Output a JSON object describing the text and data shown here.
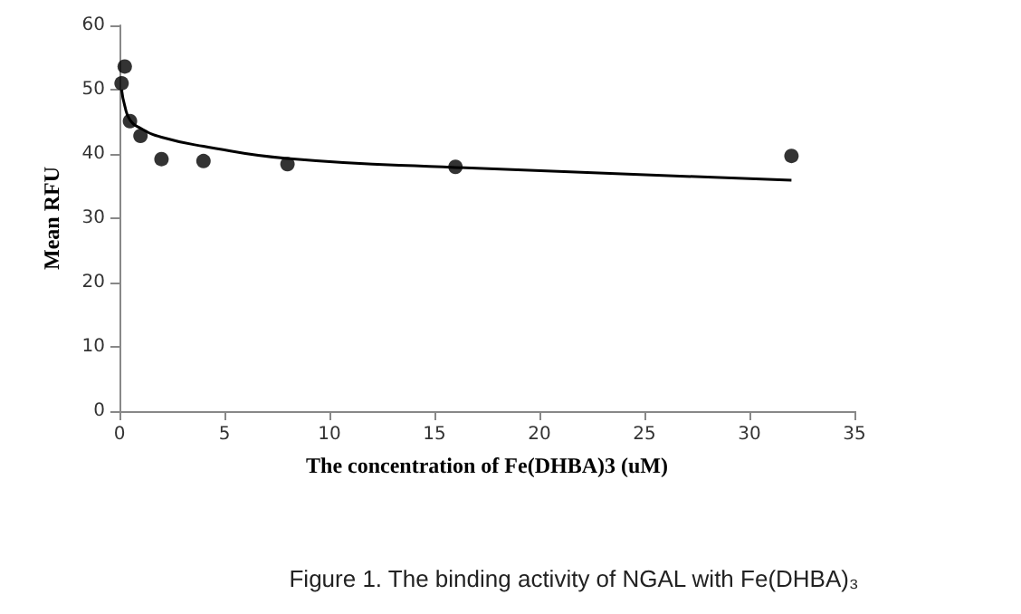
{
  "chart_data": {
    "type": "scatter",
    "title": "Figure 1. The binding activity of NGAL with Fe(DHBA)₃",
    "xlabel": "The concentration of Fe(DHBA)3 (uM)",
    "ylabel": "Mean RFU",
    "xlim": [
      0,
      35
    ],
    "xticks": [
      0,
      5,
      10,
      15,
      20,
      25,
      30,
      35
    ],
    "ylim": [
      0,
      60
    ],
    "yticks": [
      0,
      10,
      20,
      30,
      40,
      50,
      60
    ],
    "grid": false,
    "series": [
      {
        "color": "#000000",
        "marker": "circle",
        "x": [
          0.1,
          0.25,
          0.5,
          1,
          2,
          4,
          8,
          16,
          32
        ],
        "values": [
          51,
          53.6,
          45.1,
          42.8,
          39.2,
          38.9,
          38.4,
          38,
          39.7
        ]
      },
      {
        "type": "line",
        "color": "#000000",
        "marker": "none",
        "line_style": "solid",
        "x": [
          0.1,
          0.25,
          0.5,
          1,
          2,
          4,
          8,
          16,
          32
        ],
        "values": [
          50,
          47.5,
          45.3,
          44,
          42.6,
          41.2,
          39.3,
          37.9,
          35.9
        ]
      }
    ]
  }
}
